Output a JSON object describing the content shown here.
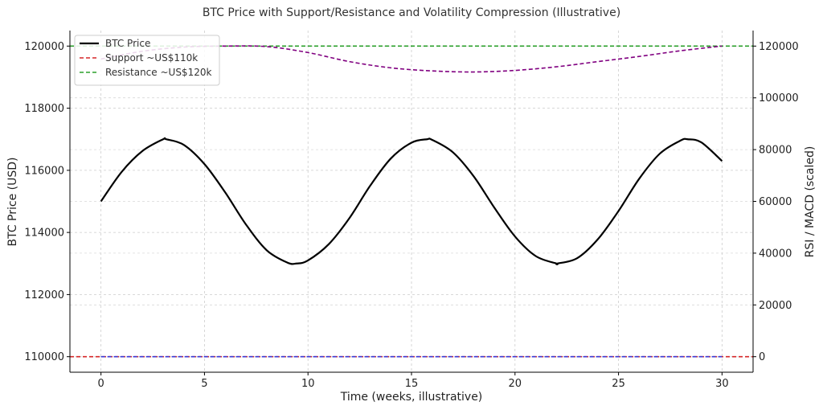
{
  "chart_data": {
    "type": "line",
    "title": "BTC Price with Support/Resistance and Volatility Compression (Illustrative)",
    "xlabel": "Time (weeks, illustrative)",
    "ylabel": "BTC Price (USD)",
    "y2label": "RSI / MACD (scaled)",
    "xlim": [
      -1.5,
      31.5
    ],
    "ylim": [
      109500,
      120500
    ],
    "y2lim": [
      -6000,
      126000
    ],
    "xticks": [
      0,
      5,
      10,
      15,
      20,
      25,
      30
    ],
    "yticks": [
      110000,
      112000,
      114000,
      116000,
      118000,
      120000
    ],
    "y2ticks": [
      0,
      20000,
      40000,
      60000,
      80000,
      100000,
      120000
    ],
    "grid": true,
    "legend_position": "top-left",
    "series": [
      {
        "name": "BTC Price",
        "axis": "left",
        "style": "solid",
        "color": "#000000",
        "x": [
          0,
          1,
          2,
          3,
          3.15,
          4,
          5,
          6,
          7,
          8,
          9,
          9.45,
          10,
          11,
          12,
          13,
          14,
          15,
          15.75,
          16,
          17,
          18,
          19,
          20,
          21,
          22,
          22.05,
          23,
          24,
          25,
          26,
          27,
          28,
          28.35,
          29,
          30
        ],
        "y": [
          115000,
          115950,
          116620,
          117000,
          117000,
          116820,
          116200,
          115290,
          114260,
          113430,
          113030,
          113000,
          113100,
          113620,
          114460,
          115500,
          116380,
          116890,
          117000,
          116980,
          116580,
          115810,
          114800,
          113870,
          113240,
          113000,
          113000,
          113170,
          113780,
          114690,
          115730,
          116540,
          116960,
          117000,
          116900,
          116300
        ]
      },
      {
        "name": "Support ~US$110k",
        "axis": "left",
        "style": "dashed",
        "color": "#d62728",
        "x": [
          -1.5,
          31.5
        ],
        "y": [
          110000,
          110000
        ]
      },
      {
        "name": "Resistance ~US$120k",
        "axis": "left",
        "style": "dashed",
        "color": "#2ca02c",
        "x": [
          -1.5,
          31.5
        ],
        "y": [
          120000,
          120000
        ]
      },
      {
        "name": "",
        "axis": "right",
        "style": "dashed",
        "color": "#800080",
        "x": [
          0,
          2,
          4,
          6,
          8,
          10,
          12,
          14,
          16,
          18,
          20,
          22,
          24,
          26,
          28,
          30
        ],
        "y": [
          115000,
          118000,
          119600,
          120000,
          119800,
          117500,
          114000,
          111600,
          110400,
          110000,
          110600,
          112000,
          114000,
          116000,
          118200,
          120000
        ]
      },
      {
        "name": "",
        "axis": "right",
        "style": "dashed",
        "color": "#3b3bd6",
        "x": [
          0,
          30
        ],
        "y": [
          0,
          0
        ]
      }
    ]
  }
}
